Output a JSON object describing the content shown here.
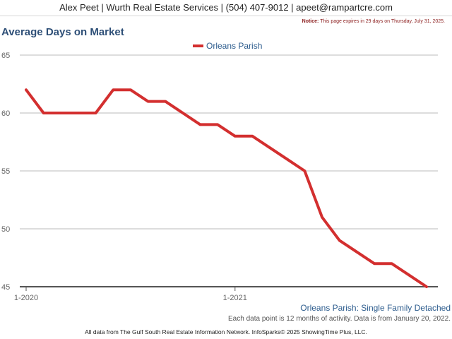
{
  "header": {
    "text": "Alex Peet | Wurth Real Estate Services | (504) 407-9012 | apeet@rampartcre.com"
  },
  "notice": {
    "label": "Notice:",
    "text": "This page expires in 29 days on Thursday, July 31, 2025."
  },
  "footer": {
    "caption": "Orleans Parish: Single Family Detached",
    "subcaption": "Each data point is 12 months of activity. Data is from January 20, 2022.",
    "credit": "All data from The Gulf South Real Estate Information Network. InfoSparks© 2025 ShowingTime Plus, LLC."
  },
  "colors": {
    "series": "#d32f2f",
    "title": "#2e4f77",
    "grid": "#bbbbbb"
  },
  "chart_data": {
    "type": "line",
    "title": "Average Days on Market",
    "legend_position": "top-center",
    "grid": true,
    "ylim": [
      45,
      65
    ],
    "yticks": [
      45,
      50,
      55,
      60,
      65
    ],
    "xtick_labels": [
      {
        "index": 0,
        "label": "1-2020"
      },
      {
        "index": 12,
        "label": "1-2021"
      }
    ],
    "x_count": 24,
    "series": [
      {
        "name": "Orleans Parish",
        "values": [
          62,
          60,
          60,
          60,
          60,
          62,
          62,
          61,
          61,
          60,
          59,
          59,
          58,
          58,
          57,
          56,
          55,
          51,
          49,
          48,
          47,
          47,
          46,
          45
        ]
      }
    ]
  }
}
